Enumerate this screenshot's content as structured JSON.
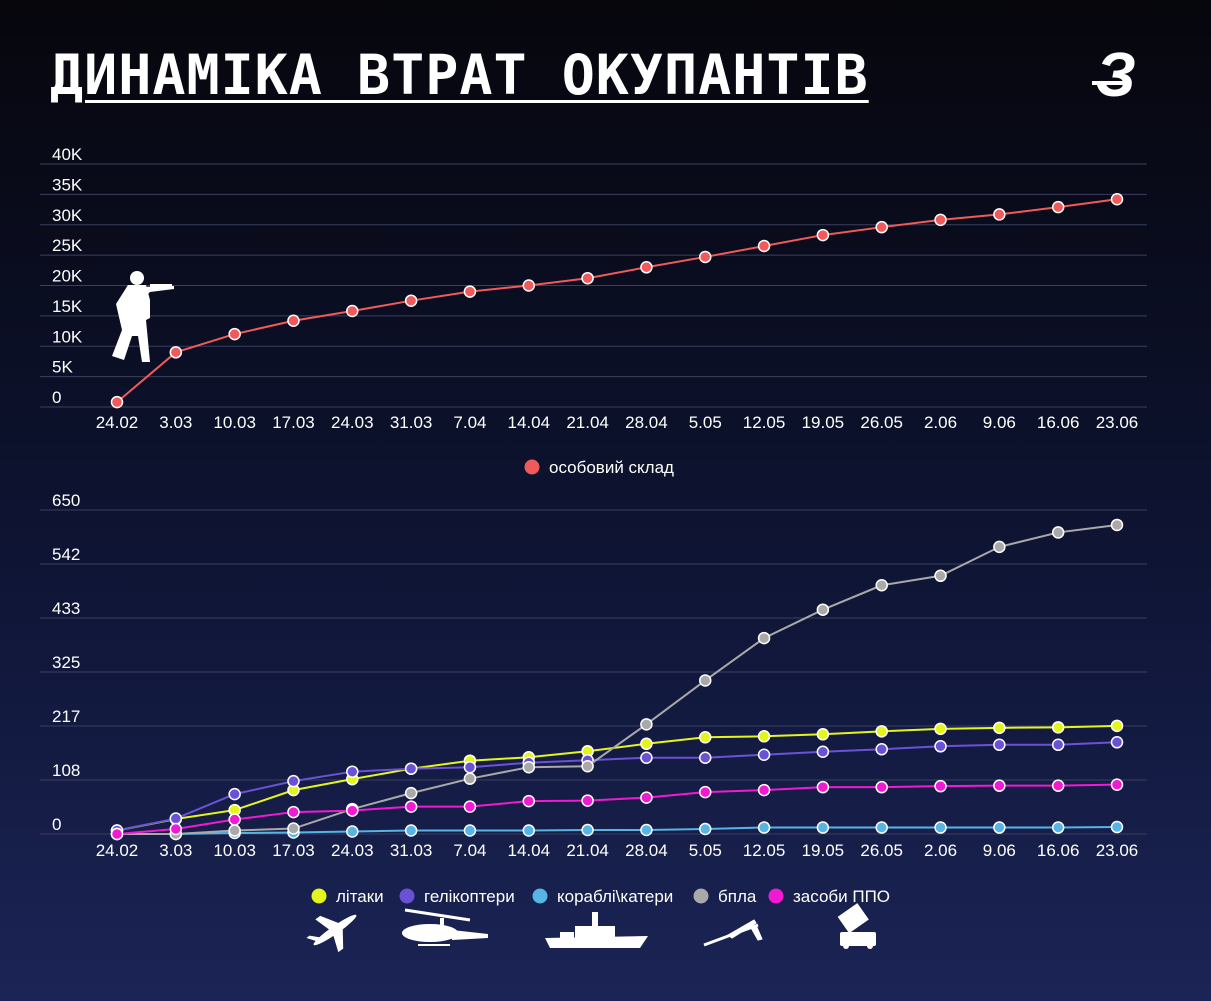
{
  "title": "ДИНАМІКА ВТРАТ ОКУПАНТІВ",
  "logo": {
    "icon": "z-logo-icon",
    "text": "З"
  },
  "colors": {
    "personnel": "#f05a5a",
    "aircraft": "#e4f51e",
    "helicopters": "#6a52d6",
    "ships": "#56b4e6",
    "drones": "#a9a9a9",
    "air_defense": "#f01ad2",
    "grid": "#3a3f5e"
  },
  "chart_data": [
    {
      "type": "line",
      "title": "",
      "x": [
        "24.02",
        "3.03",
        "10.03",
        "17.03",
        "24.03",
        "31.03",
        "7.04",
        "14.04",
        "21.04",
        "28.04",
        "5.05",
        "12.05",
        "19.05",
        "26.05",
        "2.06",
        "9.06",
        "16.06",
        "23.06"
      ],
      "yticks": [
        "0",
        "5K",
        "10K",
        "15K",
        "20K",
        "25K",
        "30K",
        "35K",
        "40K"
      ],
      "ylim": [
        0,
        40000
      ],
      "grid": true,
      "legend_position": "bottom-center",
      "series": [
        {
          "name": "особовий склад",
          "color_key": "personnel",
          "values": [
            800,
            9000,
            12000,
            14200,
            15800,
            17500,
            19000,
            20000,
            21200,
            23000,
            24700,
            26500,
            28300,
            29600,
            30800,
            31700,
            32900,
            34200
          ]
        }
      ]
    },
    {
      "type": "line",
      "title": "",
      "x": [
        "24.02",
        "3.03",
        "10.03",
        "17.03",
        "24.03",
        "31.03",
        "7.04",
        "14.04",
        "21.04",
        "28.04",
        "5.05",
        "12.05",
        "19.05",
        "26.05",
        "2.06",
        "9.06",
        "16.06",
        "23.06"
      ],
      "yticks": [
        "0",
        "108",
        "217",
        "325",
        "433",
        "542",
        "650"
      ],
      "ylim": [
        0,
        650
      ],
      "grid": true,
      "legend_position": "bottom-center",
      "series": [
        {
          "name": "літаки",
          "color_key": "aircraft",
          "values": [
            7,
            30,
            48,
            88,
            110,
            131,
            147,
            154,
            166,
            181,
            194,
            196,
            200,
            206,
            211,
            213,
            214,
            217
          ]
        },
        {
          "name": "гелікоптери",
          "color_key": "helicopters",
          "values": [
            7,
            31,
            80,
            106,
            125,
            131,
            134,
            143,
            148,
            153,
            153,
            159,
            165,
            170,
            176,
            179,
            179,
            184
          ]
        },
        {
          "name": "кораблі\\катери",
          "color_key": "ships",
          "values": [
            0,
            0,
            2,
            3,
            5,
            7,
            7,
            7,
            8,
            8,
            10,
            13,
            13,
            13,
            13,
            13,
            13,
            14
          ]
        },
        {
          "name": "бпла",
          "color_key": "drones",
          "values": [
            0,
            0,
            7,
            11,
            50,
            82,
            111,
            134,
            136,
            220,
            308,
            393,
            450,
            499,
            518,
            576,
            605,
            620
          ]
        },
        {
          "name": "засоби ППО",
          "color_key": "air_defense",
          "values": [
            0,
            10,
            29,
            44,
            47,
            55,
            55,
            66,
            67,
            73,
            84,
            88,
            94,
            94,
            96,
            97,
            97,
            99
          ]
        }
      ]
    }
  ],
  "icons": [
    "soldier-icon",
    "plane-icon",
    "helicopter-icon",
    "ship-icon",
    "drone-icon",
    "missile-launcher-icon"
  ]
}
